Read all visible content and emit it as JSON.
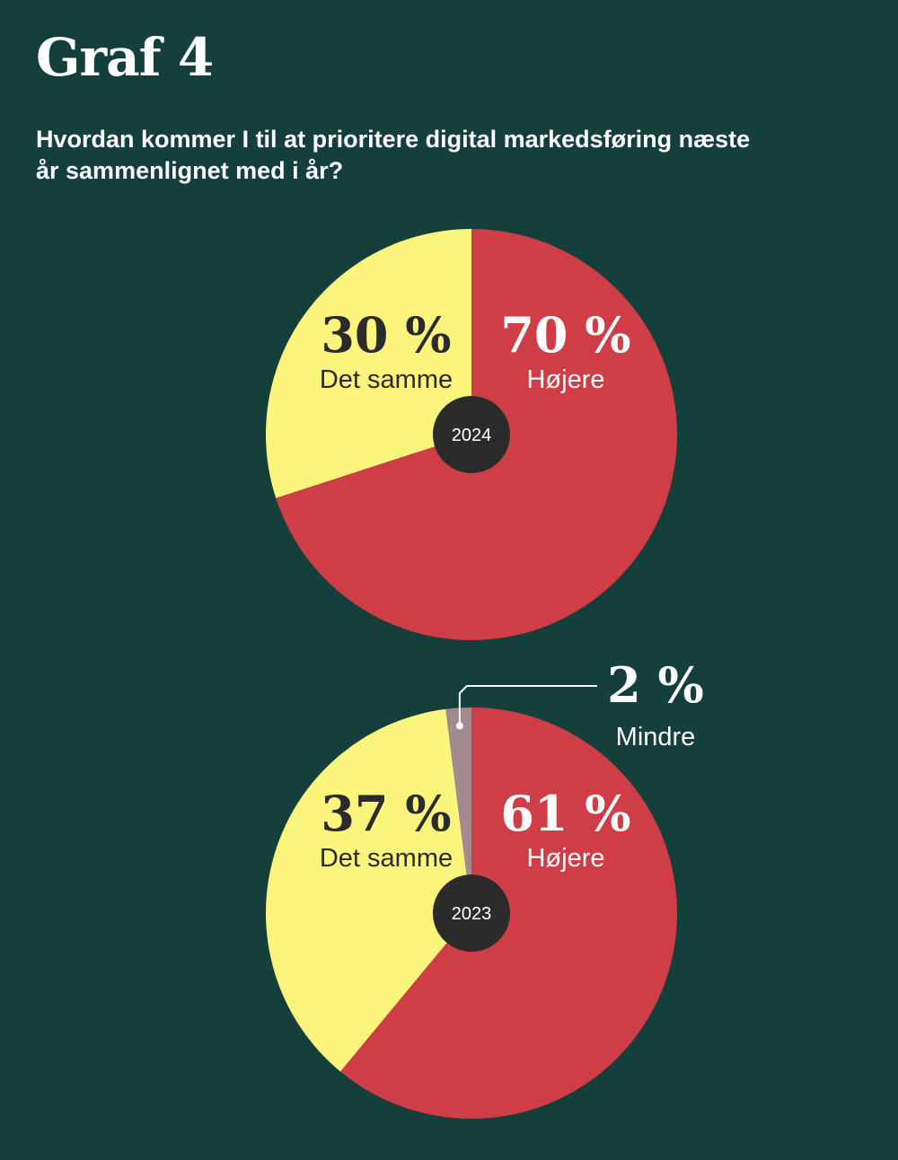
{
  "title": "Graf 4",
  "subtitle": "Hvordan kommer I til at prioritere digital markedsføring næste år sammenlignet med i år?",
  "colors": {
    "background": "#143f3b",
    "hojere": "#cf3e46",
    "det_samme": "#fbf47d",
    "mindre": "#a38a91",
    "center": "#2b2b2b"
  },
  "chart_data": [
    {
      "type": "pie",
      "year": "2024",
      "slices": [
        {
          "label": "Højere",
          "value": 70,
          "value_label": "70 %",
          "color": "#cf3e46"
        },
        {
          "label": "Det samme",
          "value": 30,
          "value_label": "30 %",
          "color": "#fbf47d"
        }
      ]
    },
    {
      "type": "pie",
      "year": "2023",
      "slices": [
        {
          "label": "Højere",
          "value": 61,
          "value_label": "61 %",
          "color": "#cf3e46"
        },
        {
          "label": "Det samme",
          "value": 37,
          "value_label": "37 %",
          "color": "#fbf47d"
        },
        {
          "label": "Mindre",
          "value": 2,
          "value_label": "2 %",
          "color": "#a38a91"
        }
      ]
    }
  ]
}
